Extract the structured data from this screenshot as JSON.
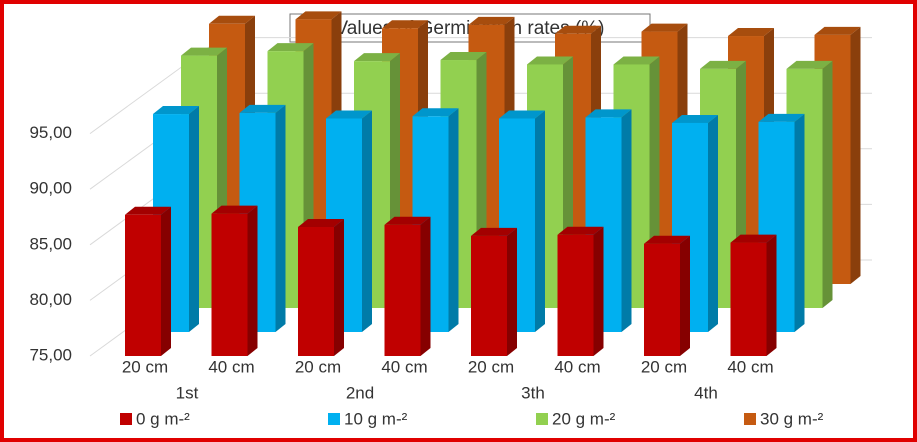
{
  "chart_data": {
    "type": "bar3d",
    "title": "Values of Germination rates (%)",
    "categories": [
      "20 cm",
      "40 cm",
      "20 cm",
      "40 cm",
      "20 cm",
      "40 cm",
      "20 cm",
      "40 cm"
    ],
    "groups": [
      "1st",
      "2nd",
      "3th",
      "4th"
    ],
    "series": [
      {
        "name": "0 g m-²",
        "color": "#c00000",
        "values": [
          87.7,
          87.8,
          86.6,
          86.8,
          85.8,
          85.9,
          85.1,
          85.2
        ]
      },
      {
        "name": "10 g m-²",
        "color": "#00b0f0",
        "values": [
          94.6,
          94.7,
          94.2,
          94.4,
          94.2,
          94.3,
          93.8,
          93.9
        ]
      },
      {
        "name": "20 g m-²",
        "color": "#92d050",
        "values": [
          97.7,
          98.1,
          97.2,
          97.3,
          96.9,
          96.9,
          96.5,
          96.5
        ]
      },
      {
        "name": "30 g m-²",
        "color": "#c55a11",
        "values": [
          98.4,
          98.8,
          98.0,
          98.3,
          97.5,
          97.7,
          97.3,
          97.4
        ]
      }
    ],
    "ylim": [
      75,
      100
    ],
    "yticks": [
      {
        "value": 75,
        "label": "75,00"
      },
      {
        "value": 80,
        "label": "80,00"
      },
      {
        "value": 85,
        "label": "85,00"
      },
      {
        "value": 90,
        "label": "90,00"
      },
      {
        "value": 95,
        "label": "95,00"
      }
    ],
    "grid": true,
    "legend": "bottom"
  }
}
